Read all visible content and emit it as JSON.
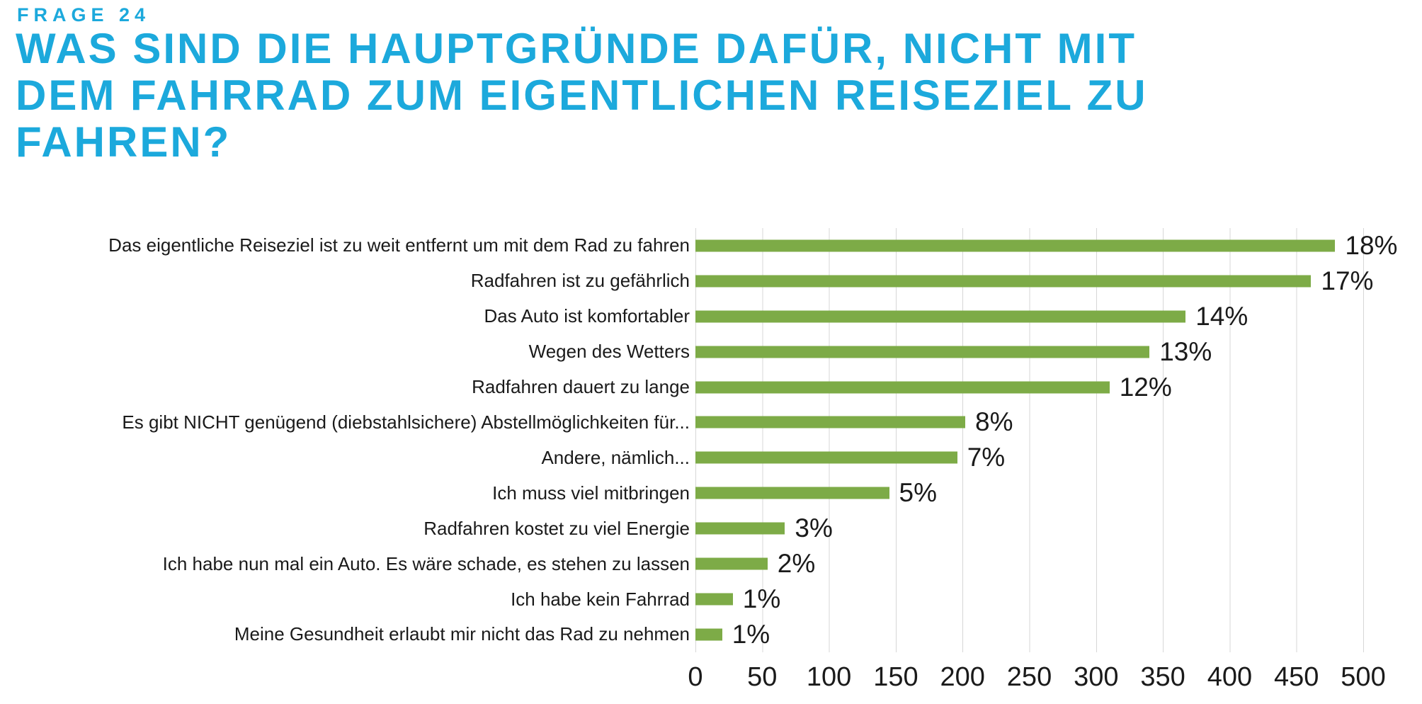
{
  "header": {
    "kicker": "FRAGE 24",
    "title": "WAS SIND DIE HAUPTGRÜNDE DAFÜR, NICHT MIT DEM FAHRRAD ZUM EIGENTLICHEN REISEZIEL ZU FAHREN?",
    "title_lines": [
      "WAS SIND DIE HAUPTGRÜNDE DAFÜR, NICHT MIT",
      "DEM FAHRRAD ZUM EIGENTLICHEN REISEZIEL ZU",
      "FAHREN?"
    ]
  },
  "colors": {
    "accent": "#1CA9DC",
    "bar": "#7DAB47",
    "gridline": "#D7D7D7",
    "text": "#1A1A1A"
  },
  "chart_data": {
    "type": "bar",
    "orientation": "horizontal",
    "title": "WAS SIND DIE HAUPTGRÜNDE DAFÜR, NICHT MIT DEM FAHRRAD ZUM EIGENTLICHEN REISEZIEL ZU FAHREN?",
    "xlabel": "",
    "ylabel": "",
    "xlim": [
      0,
      500
    ],
    "xticks": [
      "0",
      "50",
      "100",
      "150",
      "200",
      "250",
      "300",
      "350",
      "400",
      "450",
      "500"
    ],
    "grid": "vertical-gridlines-on",
    "legend": "none",
    "categories": [
      "Das eigentliche Reiseziel ist zu weit entfernt um mit dem Rad zu fahren",
      "Radfahren ist zu gefährlich",
      "Das Auto ist komfortabler",
      "Wegen des Wetters",
      "Radfahren dauert zu lange",
      "Es gibt NICHT genügend (diebstahlsichere) Abstellmöglichkeiten für...",
      "Andere, nämlich...",
      "Ich muss viel mitbringen",
      "Radfahren kostet zu viel Energie",
      "Ich habe nun mal ein Auto. Es wäre schade, es stehen zu lassen",
      "Ich habe kein Fahrrad",
      "Meine Gesundheit erlaubt mir nicht das Rad zu nehmen"
    ],
    "values": [
      479,
      461,
      367,
      340,
      310,
      202,
      196,
      145,
      67,
      54,
      28,
      20
    ],
    "value_labels": [
      "18%",
      "17%",
      "14%",
      "13%",
      "12%",
      "8%",
      "7%",
      "5%",
      "3%",
      "2%",
      "1%",
      "1%"
    ]
  }
}
